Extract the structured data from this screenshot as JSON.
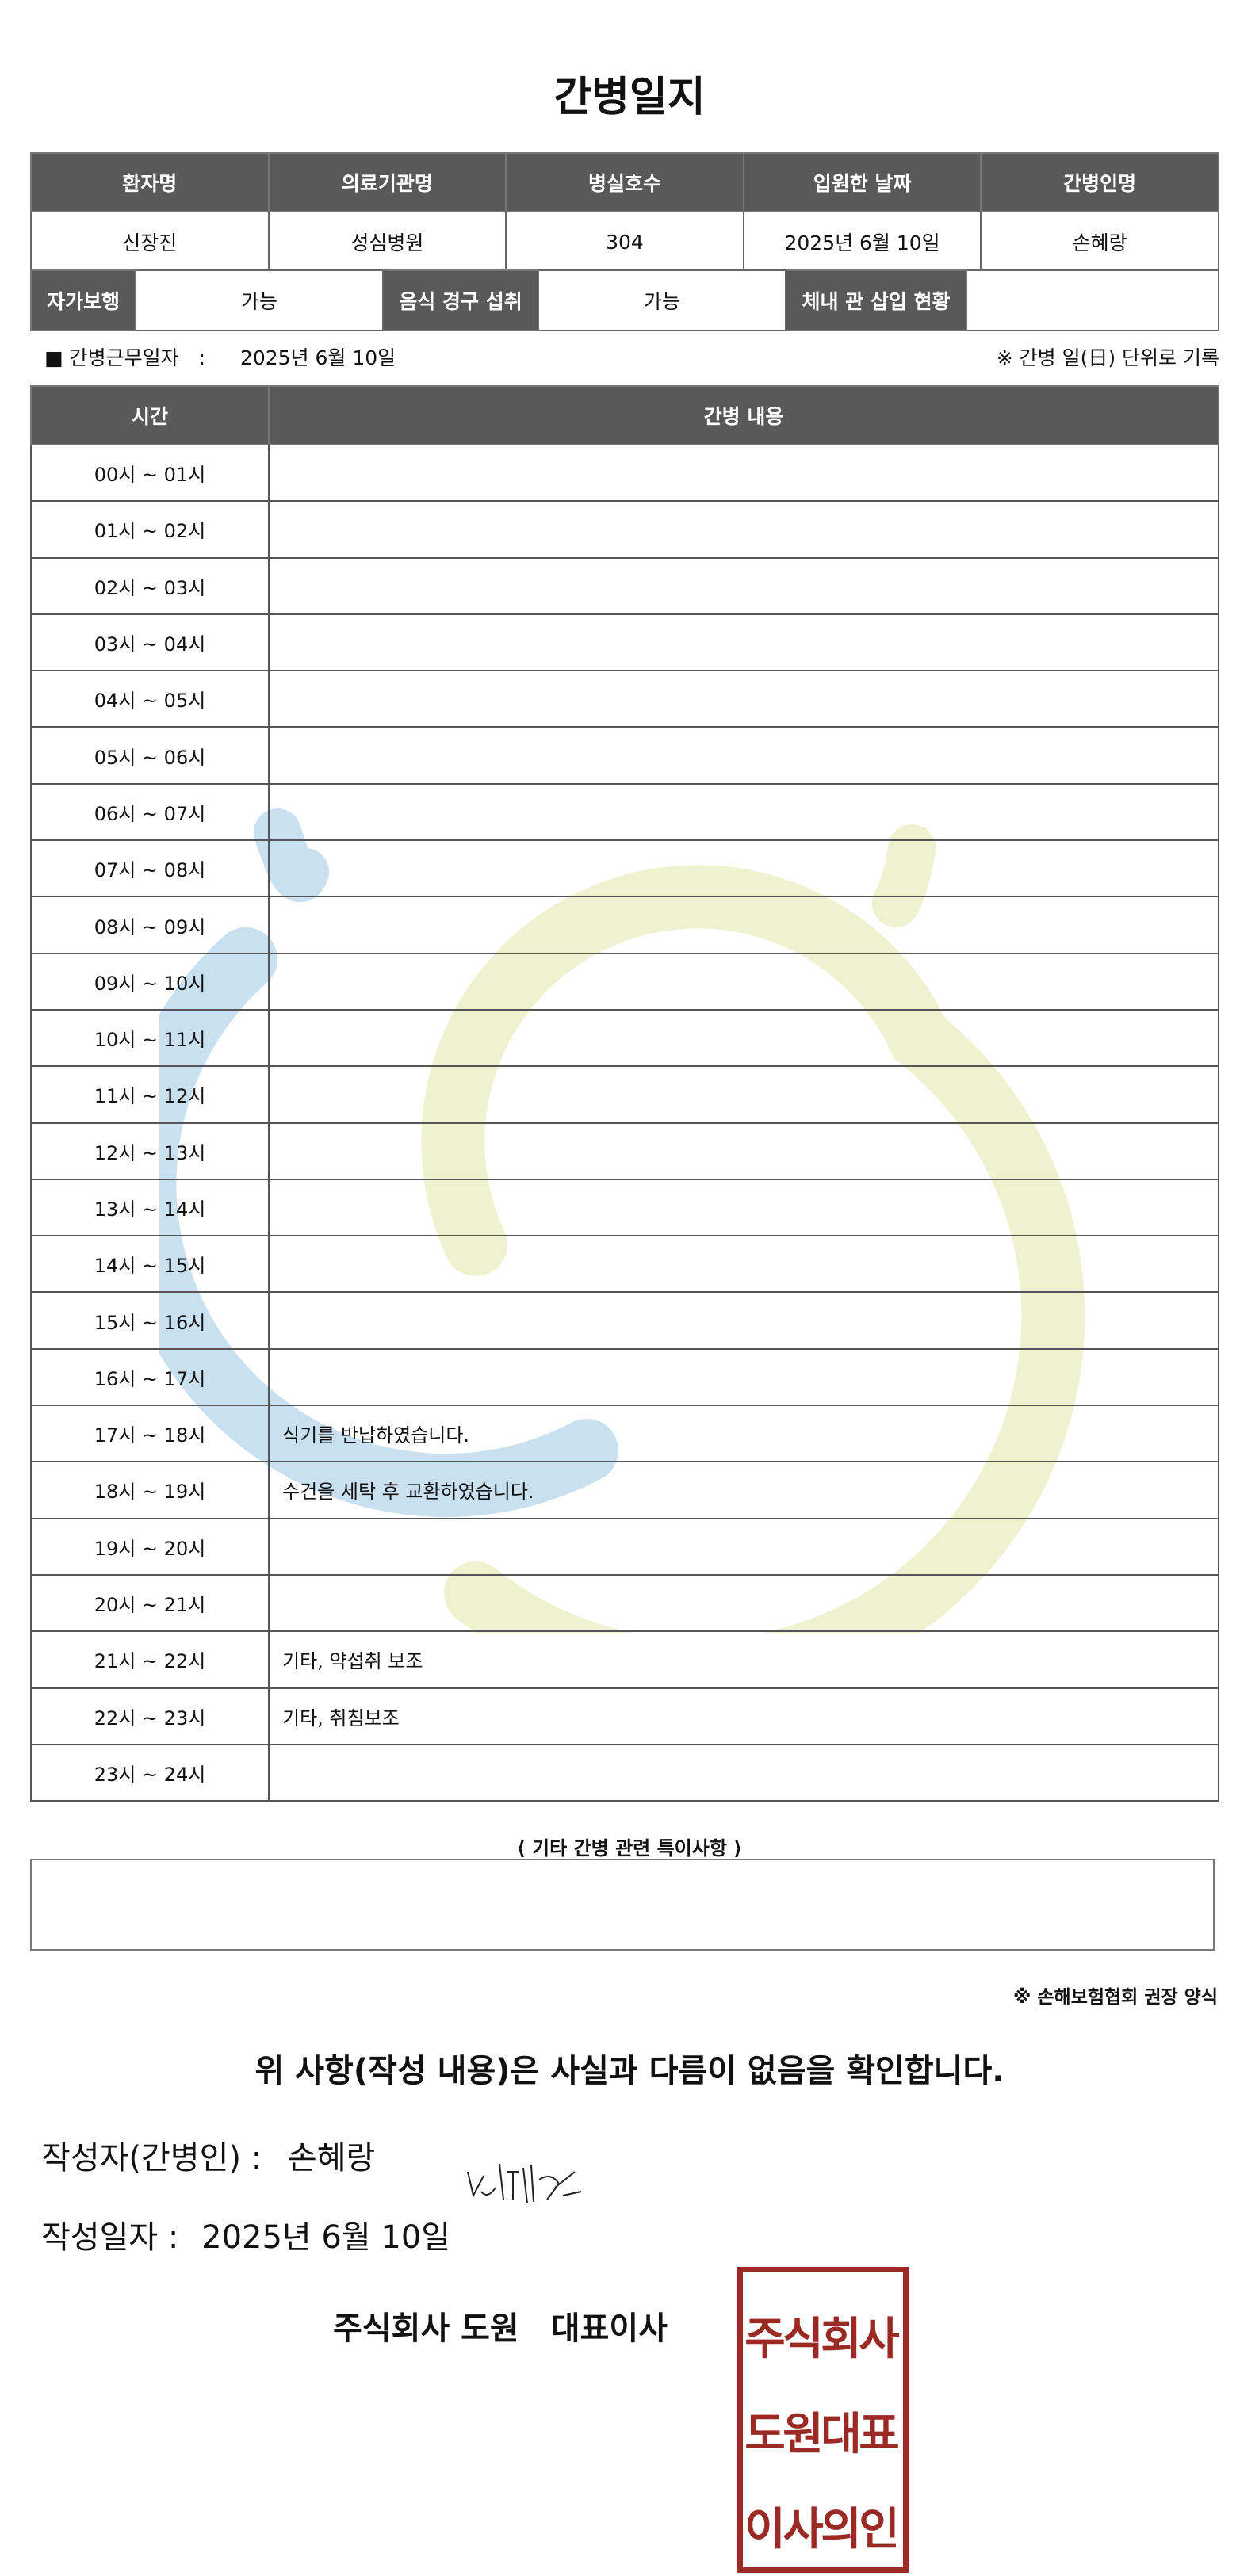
{
  "title": "간병일지",
  "info": {
    "headers": [
      "환자명",
      "의료기관명",
      "병실호수",
      "입원한 날짜",
      "간병인명"
    ],
    "values": [
      "신장진",
      "성심병원",
      "304",
      "2025년 6월 10일",
      "손혜랑"
    ]
  },
  "info2": {
    "walk_label": "자가보행",
    "walk_value": "가능",
    "eat_label": "음식 경구 섭취",
    "eat_value": "가능",
    "tube_label": "체내 관 삽입 현황",
    "tube_value": ""
  },
  "work": {
    "label": "■ 간병근무일자　:",
    "date": "2025년 6월 10일",
    "note": "※ 간병 일(日) 단위로 기록"
  },
  "log": {
    "headers": [
      "시간",
      "간병 내용"
    ],
    "rows": [
      {
        "time": "00시 ~ 01시",
        "content": ""
      },
      {
        "time": "01시 ~ 02시",
        "content": ""
      },
      {
        "time": "02시 ~ 03시",
        "content": ""
      },
      {
        "time": "03시 ~ 04시",
        "content": ""
      },
      {
        "time": "04시 ~ 05시",
        "content": ""
      },
      {
        "time": "05시 ~ 06시",
        "content": ""
      },
      {
        "time": "06시 ~ 07시",
        "content": ""
      },
      {
        "time": "07시 ~ 08시",
        "content": ""
      },
      {
        "time": "08시 ~ 09시",
        "content": ""
      },
      {
        "time": "09시 ~ 10시",
        "content": ""
      },
      {
        "time": "10시 ~ 11시",
        "content": ""
      },
      {
        "time": "11시 ~ 12시",
        "content": ""
      },
      {
        "time": "12시 ~ 13시",
        "content": ""
      },
      {
        "time": "13시 ~ 14시",
        "content": ""
      },
      {
        "time": "14시 ~ 15시",
        "content": ""
      },
      {
        "time": "15시 ~ 16시",
        "content": ""
      },
      {
        "time": "16시 ~ 17시",
        "content": ""
      },
      {
        "time": "17시 ~ 18시",
        "content": "식기를 반납하였습니다."
      },
      {
        "time": "18시 ~ 19시",
        "content": "수건을 세탁 후 교환하였습니다."
      },
      {
        "time": "19시 ~ 20시",
        "content": ""
      },
      {
        "time": "20시 ~ 21시",
        "content": ""
      },
      {
        "time": "21시 ~ 22시",
        "content": "기타, 약섭취 보조"
      },
      {
        "time": "22시 ~ 23시",
        "content": "기타, 취침보조"
      },
      {
        "time": "23시 ~ 24시",
        "content": ""
      }
    ]
  },
  "special": {
    "label": "⟨ 기타 간병 관련 특이사항 ⟩",
    "value": ""
  },
  "source_note": "※ 손해보험협회 권장 양식",
  "confirm": "위 사항(작성 내용)은 사실과 다름이 없음을 확인합니다.",
  "author": {
    "label": "작성자(간병인) :",
    "name": "손혜랑"
  },
  "written_date": {
    "label": "작성일자 :",
    "value": "2025년 6월 10일"
  },
  "company": "주식회사 도원　대표이사",
  "seal": {
    "text": "주식회사도원대표이사의인",
    "color": "#9b2a25"
  },
  "colors": {
    "header_bg": "#595959",
    "watermark_blue": "#c9e0f0",
    "watermark_green": "#eef2cf"
  }
}
